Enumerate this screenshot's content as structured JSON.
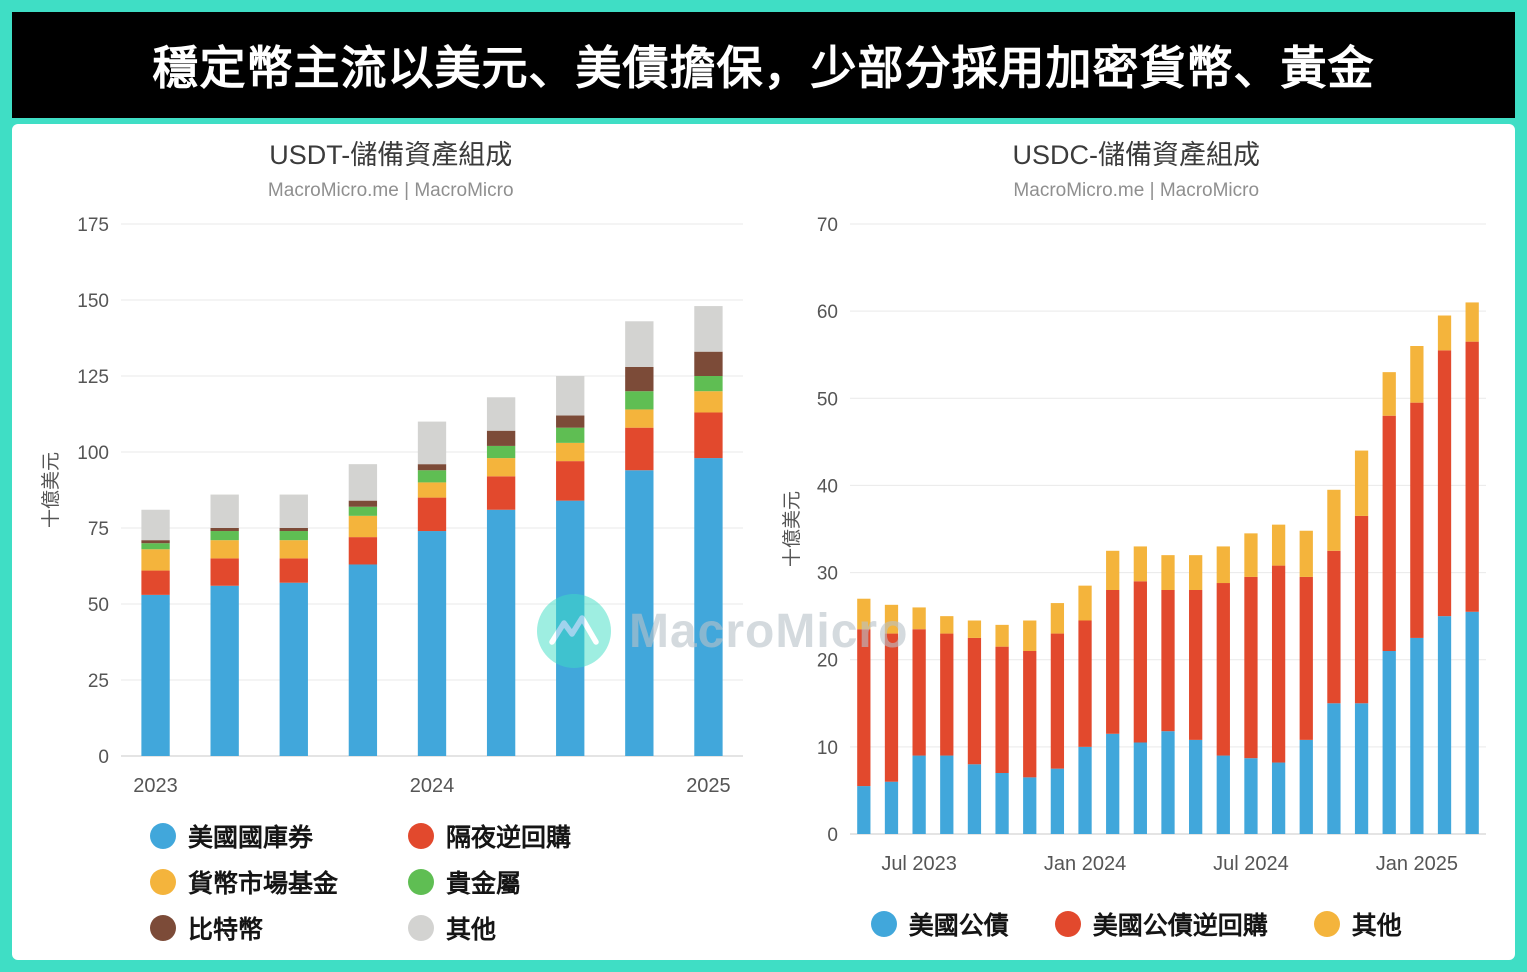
{
  "frame": {
    "accent_color": "#3FDEC5",
    "title_bg_color": "#000000",
    "title_text_color": "#FFFFFF"
  },
  "header": {
    "title": "穩定幣主流以美元、美債擔保，少部分採用加密貨幣、黃金"
  },
  "watermark": {
    "text": "MacroMicro",
    "logo": "macromicro-mountain-logo"
  },
  "chart_data": [
    {
      "type": "bar",
      "stacked": true,
      "title": "USDT-儲備資產組成",
      "subtitle": "MacroMicro.me | MacroMicro",
      "ylabel": "十億美元",
      "xlabel": "",
      "ylim": [
        0,
        175
      ],
      "yticks": [
        0,
        25,
        50,
        75,
        100,
        125,
        150,
        175
      ],
      "grid": true,
      "legend_position": "bottom",
      "legend_columns": 2,
      "categories": [
        "2023 Q1",
        "2023 Q2",
        "2023 Q3",
        "2023 Q4",
        "2024 Q1",
        "2024 Q2",
        "2024 Q3",
        "2024 Q4",
        "2025 Q1"
      ],
      "x_tick_labels": [
        "2023",
        "",
        "",
        "",
        "2024",
        "",
        "",
        "",
        "2025"
      ],
      "series": [
        {
          "name": "美國國庫券",
          "color": "#41A7DB",
          "values": [
            53,
            56,
            57,
            63,
            74,
            81,
            84,
            94,
            98
          ]
        },
        {
          "name": "隔夜逆回購",
          "color": "#E2492D",
          "values": [
            8,
            9,
            8,
            9,
            11,
            11,
            13,
            14,
            15
          ]
        },
        {
          "name": "貨幣市場基金",
          "color": "#F4B43C",
          "values": [
            7,
            6,
            6,
            7,
            5,
            6,
            6,
            6,
            7
          ]
        },
        {
          "name": "貴金屬",
          "color": "#5FBE53",
          "values": [
            2,
            3,
            3,
            3,
            4,
            4,
            5,
            6,
            5
          ]
        },
        {
          "name": "比特幣",
          "color": "#7C4B38",
          "values": [
            1,
            1,
            1,
            2,
            2,
            5,
            4,
            8,
            8
          ]
        },
        {
          "name": "其他",
          "color": "#D3D3D1",
          "values": [
            10,
            11,
            11,
            12,
            14,
            11,
            13,
            15,
            15
          ]
        }
      ]
    },
    {
      "type": "bar",
      "stacked": true,
      "title": "USDC-儲備資產組成",
      "subtitle": "MacroMicro.me | MacroMicro",
      "ylabel": "十億美元",
      "xlabel": "",
      "ylim": [
        0,
        70
      ],
      "yticks": [
        0,
        10,
        20,
        30,
        40,
        50,
        60,
        70
      ],
      "grid": true,
      "legend_position": "bottom",
      "legend_columns": 3,
      "categories": [
        "May 2023",
        "Jun 2023",
        "Jul 2023",
        "Aug 2023",
        "Sep 2023",
        "Oct 2023",
        "Nov 2023",
        "Dec 2023",
        "Jan 2024",
        "Feb 2024",
        "Mar 2024",
        "Apr 2024",
        "May 2024",
        "Jun 2024",
        "Jul 2024",
        "Aug 2024",
        "Sep 2024",
        "Oct 2024",
        "Nov 2024",
        "Dec 2024",
        "Jan 2025",
        "Feb 2025",
        "Mar 2025"
      ],
      "x_tick_labels": [
        "",
        "",
        "Jul 2023",
        "",
        "",
        "",
        "",
        "",
        "Jan 2024",
        "",
        "",
        "",
        "",
        "",
        "Jul 2024",
        "",
        "",
        "",
        "",
        "",
        "Jan 2025",
        "",
        ""
      ],
      "series": [
        {
          "name": "美國公債",
          "color": "#41A7DB",
          "values": [
            5.5,
            6,
            9,
            9,
            8,
            7,
            6.5,
            7.5,
            10,
            11.5,
            10.5,
            11.8,
            10.8,
            9,
            8.7,
            8.2,
            10.8,
            15,
            15,
            21,
            22.5,
            25,
            25.5
          ]
        },
        {
          "name": "美國公債逆回購",
          "color": "#E2492D",
          "values": [
            18,
            17,
            14.5,
            14,
            14.5,
            14.5,
            14.5,
            15.5,
            14.5,
            16.5,
            18.5,
            16.2,
            17.2,
            19.8,
            20.8,
            22.6,
            18.7,
            17.5,
            21.5,
            27,
            27,
            30.5,
            31
          ]
        },
        {
          "name": "其他",
          "color": "#F4B43C",
          "values": [
            3.5,
            3.3,
            2.5,
            2,
            2,
            2.5,
            3.5,
            3.5,
            4,
            4.5,
            4,
            4,
            4,
            4.2,
            5,
            4.7,
            5.3,
            7,
            7.5,
            5,
            6.5,
            4,
            4.5
          ]
        }
      ]
    }
  ]
}
